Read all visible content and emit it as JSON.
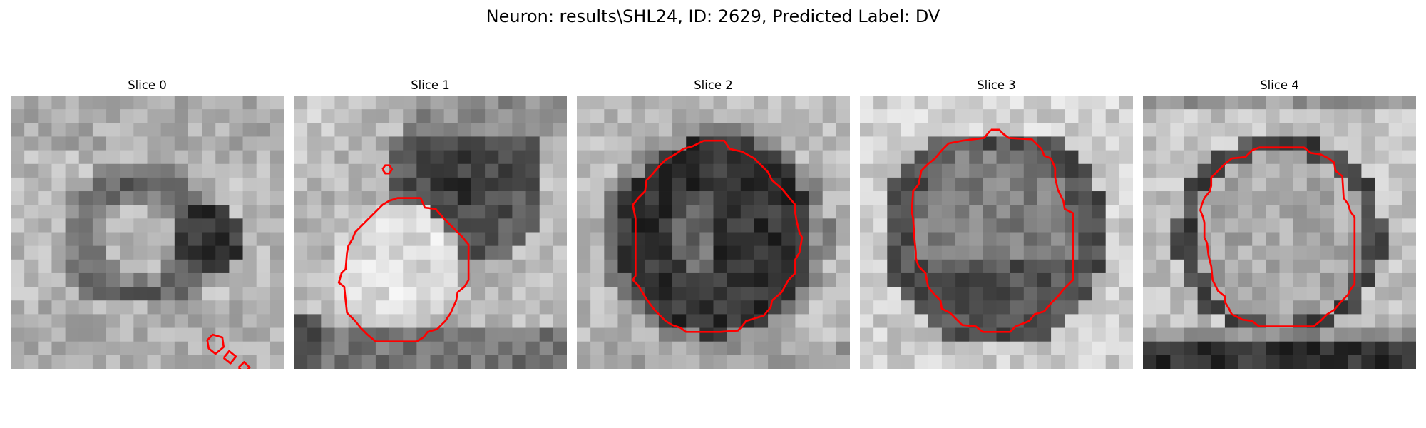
{
  "figure": {
    "title": "Neuron: results\\SHL24, ID: 2629, Predicted Label: DV"
  },
  "panels": [
    {
      "title": "Slice 0",
      "contours": [
        [
          [
            14.4,
            17.9
          ],
          [
            14.8,
            17.5
          ],
          [
            15.5,
            17.7
          ],
          [
            15.6,
            18.4
          ],
          [
            15.0,
            18.9
          ],
          [
            14.5,
            18.5
          ],
          [
            14.4,
            17.9
          ]
        ],
        [
          [
            15.6,
            19.2
          ],
          [
            16.0,
            18.7
          ],
          [
            16.5,
            19.1
          ],
          [
            16.1,
            19.6
          ],
          [
            15.6,
            19.2
          ]
        ],
        [
          [
            16.7,
            19.9
          ],
          [
            17.1,
            19.5
          ],
          [
            17.5,
            19.9
          ],
          [
            17.1,
            20.3
          ],
          [
            16.7,
            19.9
          ]
        ],
        [
          [
            17.6,
            20.6
          ],
          [
            18.1,
            20.1
          ],
          [
            19.1,
            20.2
          ],
          [
            19.4,
            20.7
          ],
          [
            18.9,
            21.0
          ],
          [
            18.0,
            21.0
          ],
          [
            17.6,
            20.6
          ]
        ]
      ]
    },
    {
      "title": "Slice 1",
      "contours": [
        [
          [
            6.5,
            5.4
          ],
          [
            6.7,
            5.1
          ],
          [
            7.0,
            5.1
          ],
          [
            7.2,
            5.4
          ],
          [
            7.0,
            5.7
          ],
          [
            6.7,
            5.7
          ],
          [
            6.5,
            5.4
          ]
        ],
        [
          [
            7.0,
            7.7
          ],
          [
            7.6,
            7.5
          ],
          [
            9.3,
            7.5
          ],
          [
            9.6,
            8.2
          ],
          [
            10.4,
            8.3
          ],
          [
            11.0,
            9.0
          ],
          [
            11.7,
            9.7
          ],
          [
            12.3,
            10.3
          ],
          [
            12.8,
            10.9
          ],
          [
            12.8,
            13.5
          ],
          [
            12.5,
            14.0
          ],
          [
            12.0,
            14.4
          ],
          [
            11.9,
            15.0
          ],
          [
            11.5,
            15.9
          ],
          [
            11.1,
            16.5
          ],
          [
            10.5,
            17.1
          ],
          [
            9.8,
            17.3
          ],
          [
            9.5,
            17.7
          ],
          [
            9.0,
            18.0
          ],
          [
            6.0,
            18.0
          ],
          [
            5.4,
            17.5
          ],
          [
            4.9,
            17.0
          ],
          [
            4.5,
            16.5
          ],
          [
            3.9,
            15.9
          ],
          [
            3.8,
            15.0
          ],
          [
            3.7,
            14.0
          ],
          [
            3.3,
            13.7
          ],
          [
            3.5,
            13.0
          ],
          [
            3.8,
            12.7
          ],
          [
            3.9,
            11.5
          ],
          [
            4.0,
            11.0
          ],
          [
            4.3,
            10.5
          ],
          [
            4.5,
            10.0
          ],
          [
            5.0,
            9.5
          ],
          [
            5.5,
            9.0
          ],
          [
            6.0,
            8.5
          ],
          [
            6.5,
            8.0
          ],
          [
            7.0,
            7.7
          ]
        ]
      ]
    },
    {
      "title": "Slice 2",
      "contours": [
        [
          [
            9.3,
            3.3
          ],
          [
            10.8,
            3.3
          ],
          [
            11.2,
            3.9
          ],
          [
            12.1,
            4.1
          ],
          [
            13.0,
            4.6
          ],
          [
            14.0,
            5.6
          ],
          [
            14.3,
            6.2
          ],
          [
            15.0,
            6.8
          ],
          [
            16.0,
            8.0
          ],
          [
            16.0,
            8.6
          ],
          [
            16.1,
            9.2
          ],
          [
            16.3,
            10.0
          ],
          [
            16.5,
            10.4
          ],
          [
            16.3,
            11.5
          ],
          [
            16.0,
            12.0
          ],
          [
            16.0,
            13.0
          ],
          [
            15.5,
            13.5
          ],
          [
            15.0,
            14.4
          ],
          [
            14.3,
            15.0
          ],
          [
            14.2,
            15.5
          ],
          [
            13.7,
            16.1
          ],
          [
            12.4,
            16.5
          ],
          [
            12.0,
            17.0
          ],
          [
            11.8,
            17.2
          ],
          [
            10.5,
            17.3
          ],
          [
            8.0,
            17.3
          ],
          [
            7.6,
            17.0
          ],
          [
            7.0,
            16.8
          ],
          [
            6.5,
            16.5
          ],
          [
            6.0,
            16.0
          ],
          [
            5.7,
            15.7
          ],
          [
            5.1,
            14.9
          ],
          [
            4.8,
            14.4
          ],
          [
            4.5,
            13.9
          ],
          [
            4.1,
            13.5
          ],
          [
            4.3,
            13.2
          ],
          [
            4.3,
            11.5
          ],
          [
            4.3,
            10.5
          ],
          [
            4.3,
            9.0
          ],
          [
            4.1,
            8.0
          ],
          [
            4.5,
            7.5
          ],
          [
            5.0,
            7.0
          ],
          [
            5.1,
            6.2
          ],
          [
            5.5,
            5.8
          ],
          [
            6.0,
            5.2
          ],
          [
            6.5,
            4.7
          ],
          [
            7.2,
            4.3
          ],
          [
            7.8,
            3.9
          ],
          [
            8.5,
            3.7
          ],
          [
            9.3,
            3.3
          ]
        ]
      ]
    },
    {
      "title": "Slice 3",
      "contours": [
        [
          [
            9.6,
            2.5
          ],
          [
            10.2,
            2.5
          ],
          [
            10.5,
            2.8
          ],
          [
            10.9,
            3.1
          ],
          [
            12.6,
            3.2
          ],
          [
            13.3,
            3.9
          ],
          [
            13.5,
            4.4
          ],
          [
            14.0,
            4.6
          ],
          [
            14.3,
            5.3
          ],
          [
            14.3,
            6.0
          ],
          [
            14.5,
            6.9
          ],
          [
            14.9,
            7.7
          ],
          [
            15.0,
            8.3
          ],
          [
            15.6,
            8.6
          ],
          [
            15.6,
            13.5
          ],
          [
            15.3,
            13.8
          ],
          [
            14.9,
            14.2
          ],
          [
            14.5,
            14.7
          ],
          [
            14.0,
            15.2
          ],
          [
            13.5,
            15.8
          ],
          [
            12.8,
            16.0
          ],
          [
            12.4,
            16.5
          ],
          [
            11.4,
            16.9
          ],
          [
            11.0,
            17.3
          ],
          [
            9.0,
            17.3
          ],
          [
            8.5,
            16.9
          ],
          [
            7.5,
            16.8
          ],
          [
            7.0,
            16.3
          ],
          [
            6.6,
            15.9
          ],
          [
            6.0,
            15.6
          ],
          [
            5.9,
            15.0
          ],
          [
            5.4,
            14.5
          ],
          [
            5.0,
            14.0
          ],
          [
            4.8,
            13.0
          ],
          [
            4.3,
            12.5
          ],
          [
            4.1,
            11.9
          ],
          [
            4.1,
            11.5
          ],
          [
            4.0,
            10.5
          ],
          [
            3.9,
            9.0
          ],
          [
            3.8,
            8.5
          ],
          [
            3.9,
            7.0
          ],
          [
            4.3,
            6.5
          ],
          [
            4.5,
            5.5
          ],
          [
            5.0,
            5.0
          ],
          [
            5.5,
            4.6
          ],
          [
            6.0,
            4.0
          ],
          [
            6.5,
            3.5
          ],
          [
            7.5,
            3.3
          ],
          [
            9.1,
            3.1
          ],
          [
            9.6,
            2.5
          ]
        ]
      ]
    },
    {
      "title": "Slice 4",
      "contours": [
        [
          [
            8.5,
            3.8
          ],
          [
            11.8,
            3.8
          ],
          [
            12.3,
            4.2
          ],
          [
            13.0,
            4.3
          ],
          [
            13.6,
            4.6
          ],
          [
            14.0,
            4.9
          ],
          [
            14.1,
            5.5
          ],
          [
            14.6,
            5.9
          ],
          [
            14.7,
            7.5
          ],
          [
            15.0,
            7.9
          ],
          [
            15.2,
            8.5
          ],
          [
            15.5,
            8.9
          ],
          [
            15.5,
            13.8
          ],
          [
            15.2,
            14.2
          ],
          [
            15.0,
            14.6
          ],
          [
            14.5,
            15.1
          ],
          [
            14.0,
            15.7
          ],
          [
            13.5,
            16.0
          ],
          [
            13.0,
            16.5
          ],
          [
            12.5,
            16.9
          ],
          [
            11.0,
            16.9
          ],
          [
            9.5,
            16.9
          ],
          [
            8.5,
            16.9
          ],
          [
            8.0,
            16.5
          ],
          [
            7.3,
            16.4
          ],
          [
            6.5,
            16.0
          ],
          [
            6.3,
            15.6
          ],
          [
            6.0,
            15.1
          ],
          [
            6.0,
            14.7
          ],
          [
            5.5,
            14.3
          ],
          [
            5.1,
            13.5
          ],
          [
            5.0,
            12.5
          ],
          [
            4.8,
            11.7
          ],
          [
            4.7,
            10.8
          ],
          [
            4.5,
            10.4
          ],
          [
            4.5,
            9.3
          ],
          [
            4.4,
            8.9
          ],
          [
            4.2,
            8.4
          ],
          [
            4.3,
            8.0
          ],
          [
            4.5,
            7.5
          ],
          [
            4.9,
            7.0
          ],
          [
            5.0,
            6.6
          ],
          [
            5.0,
            6.0
          ],
          [
            5.5,
            5.5
          ],
          [
            6.0,
            5.0
          ],
          [
            6.5,
            4.6
          ],
          [
            7.5,
            4.5
          ],
          [
            8.0,
            4.0
          ],
          [
            8.5,
            3.8
          ]
        ]
      ]
    }
  ],
  "colors": {
    "contour": "#ff0000"
  }
}
